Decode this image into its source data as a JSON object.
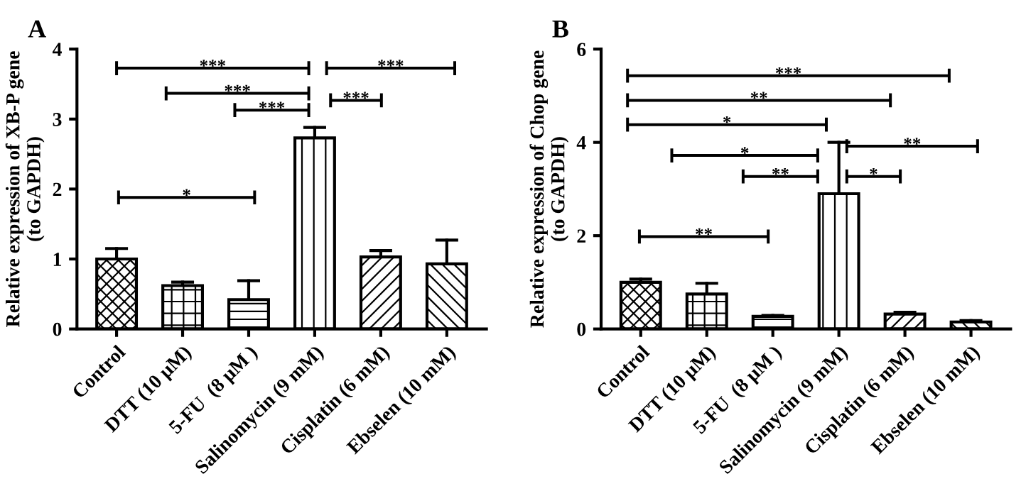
{
  "chart_data": [
    {
      "type": "bar",
      "title": "A",
      "ylabel": "Relative expression of XB-P gene\n(to GAPDH)",
      "categories": [
        "Control",
        "DTT (10 μM)",
        "5-FU  (8 μM )",
        "Salinomycin (9 mM)",
        "Cisplatin (6 mM)",
        "Ebselen (10 mM)"
      ],
      "values": [
        1.0,
        0.62,
        0.42,
        2.73,
        1.03,
        0.93
      ],
      "errors": [
        [
          1.0,
          1.15
        ],
        [
          0.62,
          0.67
        ],
        [
          0.42,
          0.69
        ],
        [
          2.73,
          2.88
        ],
        [
          1.03,
          1.12
        ],
        [
          0.93,
          1.27
        ]
      ],
      "ylim": [
        0,
        4
      ],
      "yticks": [
        0,
        1,
        2,
        3,
        4
      ],
      "grid": false,
      "annotations": [
        "***",
        "***",
        "***",
        "***",
        "***",
        "*"
      ]
    },
    {
      "type": "bar",
      "title": "B",
      "ylabel": "Relative expression of Chop gene\n(to GAPDH)",
      "categories": [
        "Control",
        "DTT (10 μM)",
        "5-FU  (8 μM )",
        "Salinomycin (9 mM)",
        "Cisplatin (6 mM)",
        "Ebselen (10 mM)"
      ],
      "values": [
        1.0,
        0.75,
        0.27,
        2.9,
        0.32,
        0.15
      ],
      "errors": [
        [
          1.0,
          1.07
        ],
        [
          0.75,
          0.98
        ],
        [
          0.27,
          0.29
        ],
        [
          2.9,
          4.0
        ],
        [
          0.32,
          0.36
        ],
        [
          0.15,
          0.18
        ]
      ],
      "ylim": [
        0,
        6
      ],
      "yticks": [
        0,
        2,
        4,
        6
      ],
      "grid": false,
      "annotations": [
        "***",
        "**",
        "*",
        "*",
        "**",
        "**",
        "*",
        "**"
      ]
    }
  ]
}
